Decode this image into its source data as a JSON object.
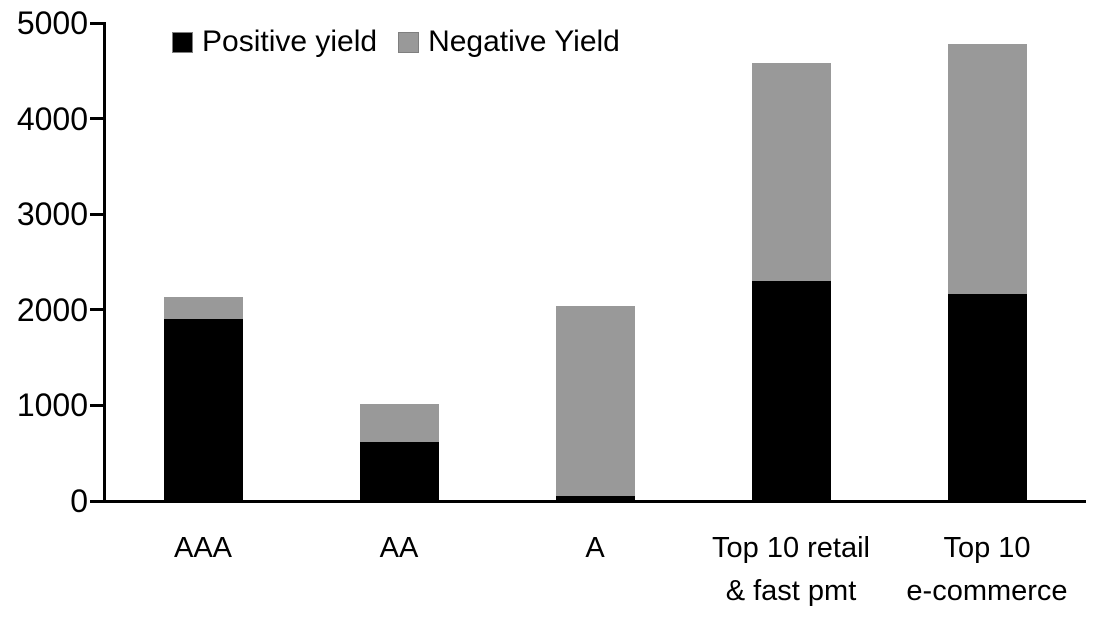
{
  "chart_data": {
    "type": "bar",
    "stacked": true,
    "title": "",
    "xlabel": "",
    "ylabel": "",
    "categories": [
      "AAA",
      "AA",
      "A",
      "Top 10 retail\n& fast pmt",
      "Top 10\ne-commerce"
    ],
    "series": [
      {
        "name": "Positive yield",
        "color": "#000000",
        "values": [
          1890,
          610,
          45,
          2290,
          2150
        ]
      },
      {
        "name": "Negative Yield",
        "color": "#999999",
        "values": [
          230,
          390,
          1985,
          2280,
          2620
        ]
      }
    ],
    "totals": [
      2120,
      1000,
      2030,
      4570,
      4770
    ],
    "ylim": [
      0,
      5000
    ],
    "y_ticks": [
      0,
      1000,
      2000,
      3000,
      4000,
      5000
    ],
    "grid": false,
    "legend_position": "top"
  },
  "colors": {
    "positive": "#000000",
    "negative": "#999999",
    "axis": "#000000",
    "background": "#ffffff"
  }
}
